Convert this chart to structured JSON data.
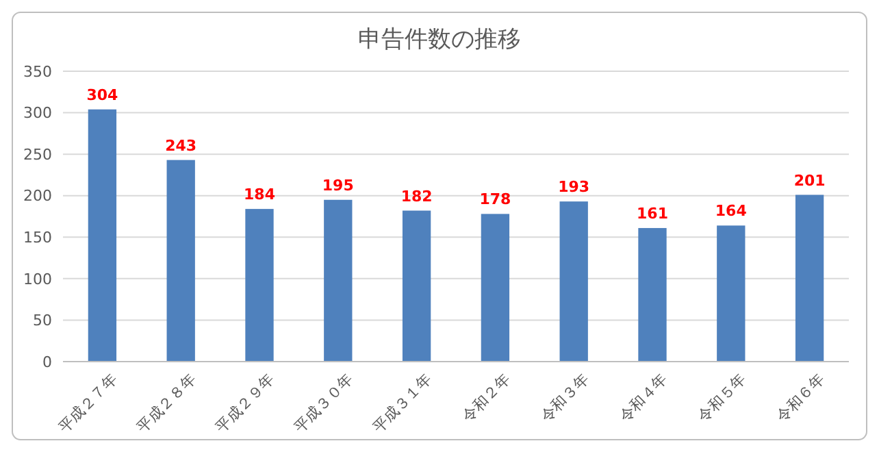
{
  "chart_data": {
    "type": "bar",
    "title": "申告件数の推移",
    "categories": [
      "平成２７年",
      "平成２８年",
      "平成２９年",
      "平成３０年",
      "平成３１年",
      "令和２年",
      "令和３年",
      "令和４年",
      "令和５年",
      "令和６年"
    ],
    "values": [
      304,
      243,
      184,
      195,
      182,
      178,
      193,
      161,
      164,
      201
    ],
    "color": "#4f81bd",
    "ylim": [
      0,
      350
    ],
    "yticks": [
      0,
      50,
      100,
      150,
      200,
      250,
      300,
      350
    ],
    "grid": "y",
    "data_labels": true
  }
}
